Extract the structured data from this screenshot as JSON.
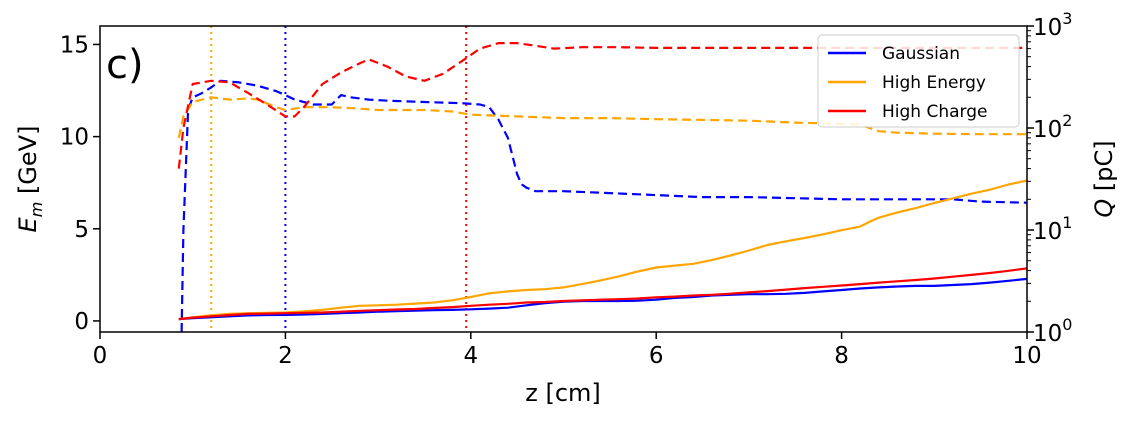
{
  "chart_data": {
    "type": "line",
    "panel_label": "c)",
    "xlabel": "z [cm]",
    "ylabel_left_base": "E",
    "ylabel_left_sub": "m",
    "ylabel_left_unit": " [GeV]",
    "ylabel_right_base": "Q",
    "ylabel_right_unit": " [pC]",
    "xlim": [
      0,
      10
    ],
    "ylim_left": [
      -0.6,
      16.0
    ],
    "ylim_right_log10": [
      0,
      3
    ],
    "x_ticks": [
      0,
      2,
      4,
      6,
      8,
      10
    ],
    "x_tick_labels": [
      "0",
      "2",
      "4",
      "6",
      "8",
      "10"
    ],
    "y_left_ticks": [
      0,
      5,
      10,
      15
    ],
    "y_left_tick_labels": [
      "0",
      "5",
      "10",
      "15"
    ],
    "y_right_tick_base": "10",
    "y_right_tick_exponents": [
      "0",
      "1",
      "2",
      "3"
    ],
    "legend_position": "top-right",
    "grid": false,
    "series": [
      {
        "name": "Gaussian",
        "color": "#0000ff",
        "energy": {
          "x": [
            0.85,
            1.0,
            1.2,
            1.4,
            1.6,
            1.8,
            2.0,
            2.2,
            2.4,
            2.6,
            2.8,
            3.0,
            3.2,
            3.4,
            3.6,
            3.8,
            4.0,
            4.2,
            4.4,
            4.6,
            4.8,
            5.0,
            5.2,
            5.4,
            5.6,
            5.8,
            6.0,
            6.2,
            6.4,
            6.6,
            6.8,
            7.0,
            7.2,
            7.4,
            7.6,
            7.8,
            8.0,
            8.2,
            8.4,
            8.6,
            8.8,
            9.0,
            9.2,
            9.4,
            9.6,
            9.8,
            10.0
          ],
          "y": [
            0.1,
            0.15,
            0.2,
            0.25,
            0.3,
            0.32,
            0.33,
            0.35,
            0.38,
            0.42,
            0.46,
            0.5,
            0.53,
            0.56,
            0.58,
            0.6,
            0.63,
            0.67,
            0.72,
            0.85,
            0.97,
            1.05,
            1.08,
            1.08,
            1.08,
            1.1,
            1.15,
            1.25,
            1.3,
            1.38,
            1.42,
            1.45,
            1.45,
            1.47,
            1.52,
            1.6,
            1.68,
            1.76,
            1.82,
            1.87,
            1.9,
            1.9,
            1.95,
            2.0,
            2.08,
            2.18,
            2.28
          ]
        },
        "charge": {
          "x": [
            0.88,
            0.9,
            0.95,
            1.0,
            1.1,
            1.2,
            1.3,
            1.5,
            1.7,
            1.9,
            2.0,
            2.1,
            2.3,
            2.5,
            2.6,
            2.7,
            2.9,
            3.1,
            3.5,
            3.9,
            4.1,
            4.2,
            4.3,
            4.4,
            4.5,
            4.55,
            4.6,
            4.7,
            5.0,
            5.5,
            6.0,
            6.5,
            7.0,
            7.5,
            8.0,
            8.5,
            9.0,
            9.2,
            9.5,
            10.0
          ],
          "y": [
            1.0,
            10.0,
            150.0,
            200.0,
            220.0,
            250.0,
            290.0,
            280.0,
            260.0,
            230.0,
            210.0,
            190.0,
            170.0,
            170.0,
            210.0,
            200.0,
            190.0,
            185.0,
            180.0,
            175.0,
            170.0,
            160.0,
            120.0,
            80.0,
            35.0,
            28.0,
            26.0,
            24.0,
            24.0,
            23.0,
            22.0,
            21.0,
            21.0,
            20.5,
            20.0,
            20.0,
            20.0,
            20.0,
            19.0,
            18.5
          ]
        }
      },
      {
        "name": "High Energy",
        "color": "#ffa500",
        "energy": {
          "x": [
            0.85,
            1.0,
            1.2,
            1.4,
            1.6,
            1.8,
            2.0,
            2.2,
            2.4,
            2.6,
            2.8,
            3.0,
            3.2,
            3.4,
            3.6,
            3.8,
            4.0,
            4.2,
            4.4,
            4.6,
            4.8,
            5.0,
            5.2,
            5.4,
            5.6,
            5.8,
            6.0,
            6.2,
            6.4,
            6.6,
            6.8,
            7.0,
            7.2,
            7.4,
            7.6,
            7.8,
            8.0,
            8.2,
            8.3,
            8.4,
            8.6,
            8.8,
            9.0,
            9.2,
            9.4,
            9.6,
            9.8,
            10.0
          ],
          "y": [
            0.1,
            0.2,
            0.3,
            0.38,
            0.42,
            0.44,
            0.46,
            0.52,
            0.6,
            0.72,
            0.82,
            0.85,
            0.88,
            0.94,
            1.0,
            1.12,
            1.3,
            1.5,
            1.6,
            1.68,
            1.72,
            1.82,
            2.0,
            2.2,
            2.42,
            2.68,
            2.9,
            3.0,
            3.1,
            3.3,
            3.55,
            3.82,
            4.12,
            4.32,
            4.5,
            4.7,
            4.92,
            5.12,
            5.38,
            5.6,
            5.88,
            6.12,
            6.4,
            6.65,
            6.9,
            7.12,
            7.4,
            7.62
          ]
        },
        "charge": {
          "x": [
            0.85,
            0.9,
            1.0,
            1.2,
            1.4,
            1.6,
            1.7,
            1.9,
            2.0,
            2.2,
            2.5,
            2.8,
            3.0,
            3.5,
            3.8,
            4.0,
            4.5,
            5.0,
            5.5,
            6.0,
            6.5,
            7.0,
            7.5,
            8.0,
            8.2,
            8.3,
            8.4,
            8.6,
            9.0,
            9.5,
            10.0
          ],
          "y": [
            80.0,
            130.0,
            180.0,
            200.0,
            190.0,
            195.0,
            190.0,
            160.0,
            150.0,
            160.0,
            160.0,
            155.0,
            150.0,
            150.0,
            145.0,
            135.0,
            130.0,
            125.0,
            125.0,
            122.0,
            120.0,
            118.0,
            113.0,
            110.0,
            108.0,
            100.0,
            93.0,
            90.0,
            88.0,
            87.0,
            87.0
          ]
        }
      },
      {
        "name": "High Charge",
        "color": "#ff0000",
        "energy": {
          "x": [
            0.85,
            1.0,
            1.2,
            1.4,
            1.6,
            1.8,
            2.0,
            2.2,
            2.4,
            2.6,
            2.8,
            3.0,
            3.2,
            3.4,
            3.6,
            3.8,
            4.0,
            4.2,
            4.4,
            4.6,
            4.8,
            5.0,
            5.2,
            5.4,
            5.6,
            5.8,
            6.0,
            6.2,
            6.4,
            6.6,
            6.8,
            7.0,
            7.2,
            7.4,
            7.6,
            7.8,
            8.0,
            8.2,
            8.4,
            8.6,
            8.8,
            9.0,
            9.2,
            9.4,
            9.6,
            9.8,
            10.0
          ],
          "y": [
            0.1,
            0.18,
            0.25,
            0.32,
            0.38,
            0.4,
            0.42,
            0.44,
            0.46,
            0.5,
            0.55,
            0.58,
            0.62,
            0.65,
            0.7,
            0.75,
            0.82,
            0.88,
            0.93,
            1.0,
            1.03,
            1.08,
            1.12,
            1.15,
            1.18,
            1.22,
            1.28,
            1.32,
            1.38,
            1.42,
            1.48,
            1.55,
            1.62,
            1.7,
            1.78,
            1.85,
            1.92,
            2.0,
            2.08,
            2.15,
            2.22,
            2.3,
            2.4,
            2.5,
            2.6,
            2.72,
            2.85
          ]
        },
        "charge": {
          "x": [
            0.85,
            0.9,
            1.0,
            1.2,
            1.4,
            1.6,
            1.8,
            2.0,
            2.1,
            2.2,
            2.4,
            2.6,
            2.8,
            2.9,
            3.1,
            3.3,
            3.5,
            3.7,
            3.9,
            4.1,
            4.3,
            4.5,
            4.7,
            4.9,
            5.2,
            5.6,
            6.0,
            7.0,
            8.0,
            9.0,
            10.0
          ],
          "y": [
            40.0,
            100.0,
            270.0,
            290.0,
            280.0,
            220.0,
            170.0,
            130.0,
            130.0,
            160.0,
            270.0,
            350.0,
            430.0,
            470.0,
            400.0,
            320.0,
            290.0,
            340.0,
            450.0,
            600.0,
            680.0,
            680.0,
            640.0,
            600.0,
            620.0,
            620.0,
            610.0,
            610.0,
            610.0,
            610.0,
            610.0
          ]
        }
      }
    ],
    "vertical_markers": [
      {
        "x": 1.2,
        "color": "#ffa500"
      },
      {
        "x": 2.0,
        "color": "#0000ff"
      },
      {
        "x": 3.95,
        "color": "#ff0000"
      }
    ]
  }
}
